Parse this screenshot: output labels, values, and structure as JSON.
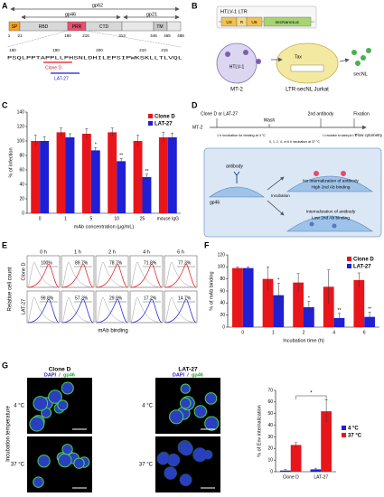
{
  "panel_labels": [
    "A",
    "B",
    "C",
    "D",
    "E",
    "F",
    "G"
  ],
  "panel_a": {
    "arrows": [
      "gp62",
      "gp46",
      "gp21"
    ],
    "domains": [
      "SP",
      "RBD",
      "PRR",
      "CTD",
      "TM"
    ],
    "positions": [
      1,
      21,
      180,
      216,
      313,
      446,
      465,
      488
    ],
    "sequence_positions": [
      180,
      190,
      200,
      210,
      215
    ],
    "sequence": "PSQLPPTAPPLLPHSNLDHILEPSIPWKSKLLTLVQL",
    "epitopes": [
      "Clone D",
      "LAT-27"
    ]
  },
  "panel_b": {
    "promoter": "HTLV-1 LTR",
    "elements": [
      "U3",
      "R",
      "U5",
      "secNanoLuc"
    ],
    "donor": "MT-2",
    "virus": "HTLV-1",
    "reporter_cell": "LTR-secNL Jurkat",
    "transactivator": "Tax",
    "product": "secNL"
  },
  "panel_d": {
    "steps": [
      "Clone D or LAT-27",
      "Wash",
      "2nd antibody",
      "Fixation"
    ],
    "cell": "MT-2",
    "readout": "Flow cytometry",
    "step_details": [
      "1 h incubation for binding at 4 °C",
      "0, 1, 2, 4, or 6 h incubation at 37 °C",
      "1 h incubation for staining at 4 °C"
    ],
    "antibody": "antibody",
    "antigen": "gp46",
    "incubation": "Incubation",
    "outcomes": [
      [
        "No internalization of antibody",
        "High 2nd Ab binding"
      ],
      [
        "Internalization of antibody",
        "Low 2nd Ab binding"
      ]
    ]
  },
  "panel_e": {
    "times": [
      "0 h",
      "1 h",
      "2 h",
      "4 h",
      "6 h"
    ],
    "rows": [
      "Clone D",
      "LAT-27"
    ],
    "percentages": [
      [
        "100%",
        "89.7%",
        "78.7%",
        "71.8%",
        "77.3%"
      ],
      [
        "99.8%",
        "57.3%",
        "29.9%",
        "17.2%",
        "14.7%"
      ]
    ],
    "y_label": "Relative cell count",
    "x_label": "mAb binding"
  },
  "panel_g": {
    "columns": [
      "Clone D",
      "LAT-27"
    ],
    "stains": [
      "DAPI",
      "gp46"
    ],
    "separator": "/",
    "rows": [
      "4 °C",
      "37 °C"
    ],
    "y_label": "Incubation temperature"
  },
  "chart_data": [
    {
      "type": "bar",
      "categories": [
        "0",
        "1",
        "5",
        "10",
        "25",
        "mouse IgG"
      ],
      "series": [
        {
          "name": "Clone D",
          "color": "#e8151b",
          "values": [
            100,
            112,
            110,
            112,
            100,
            105
          ],
          "errors": [
            8,
            6,
            7,
            6,
            8,
            7
          ],
          "significance": [
            null,
            null,
            null,
            null,
            null,
            null
          ]
        },
        {
          "name": "LAT-27",
          "color": "#1f1fd6",
          "values": [
            100,
            105,
            87,
            72,
            50,
            105
          ],
          "errors": [
            6,
            5,
            4,
            4,
            4,
            6
          ],
          "significance": [
            null,
            null,
            "*",
            "**",
            "**",
            null
          ]
        }
      ],
      "ylim": [
        0,
        140
      ],
      "yticks": [
        0,
        20,
        40,
        60,
        80,
        100,
        120,
        140
      ],
      "x_label": "mAb concentration (μg/mL)",
      "y_label": "% of infection",
      "legend": "upper right"
    },
    {
      "type": "bar",
      "categories": [
        "0",
        "1",
        "2",
        "4",
        "6"
      ],
      "series": [
        {
          "name": "Clone D",
          "color": "#e8151b",
          "values": [
            98,
            80,
            74,
            67,
            78
          ],
          "errors": [
            2,
            20,
            15,
            28,
            12
          ],
          "significance": [
            null,
            null,
            null,
            null,
            null
          ]
        },
        {
          "name": "LAT-27",
          "color": "#1f1fd6",
          "values": [
            98,
            53,
            33,
            15,
            17
          ],
          "errors": [
            2,
            20,
            10,
            8,
            8
          ],
          "significance": [
            null,
            "*",
            "*",
            "**",
            "**"
          ]
        }
      ],
      "ylim": [
        0,
        120
      ],
      "yticks": [
        0,
        20,
        40,
        60,
        80,
        100,
        120
      ],
      "x_label": "Incubation time (h)",
      "y_label": "% of mAb binding",
      "legend": "upper right"
    },
    {
      "type": "bar",
      "categories": [
        "Clone D",
        "LAT-27"
      ],
      "series": [
        {
          "name": "4 °C",
          "color": "#1f1fd6",
          "values": [
            1,
            2
          ],
          "errors": [
            1,
            1
          ],
          "significance": [
            null,
            null
          ]
        },
        {
          "name": "37 °C",
          "color": "#e8151b",
          "values": [
            23,
            52
          ],
          "errors": [
            2,
            10
          ],
          "significance": [
            null,
            null
          ]
        }
      ],
      "ylim": [
        0,
        70
      ],
      "yticks": [
        0,
        10,
        20,
        30,
        40,
        50,
        60,
        70
      ],
      "y_label": "% of Env internalization",
      "bracket_label": "*",
      "legend": "center right"
    }
  ]
}
